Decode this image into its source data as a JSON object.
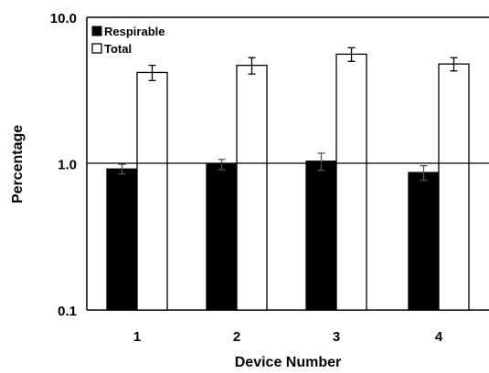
{
  "chart_data": {
    "type": "bar",
    "yscale": "log",
    "ylim": [
      0.1,
      10.0
    ],
    "yticks": [
      "10.0",
      "1.0",
      "0.1"
    ],
    "xlabel": "Device Number",
    "ylabel": "Percentage",
    "categories": [
      "1",
      "2",
      "3",
      "4"
    ],
    "grid": "horizontal line at 1.0",
    "legend_position": "top-left",
    "series": [
      {
        "name": "Respirable",
        "color": "#000000",
        "values": [
          0.92,
          0.99,
          1.04,
          0.87
        ],
        "errors": [
          0.07,
          0.08,
          0.14,
          0.1
        ]
      },
      {
        "name": "Total",
        "color": "#ffffff",
        "values": [
          4.2,
          4.7,
          5.6,
          4.8
        ],
        "errors": [
          0.5,
          0.6,
          0.6,
          0.5
        ]
      }
    ]
  }
}
